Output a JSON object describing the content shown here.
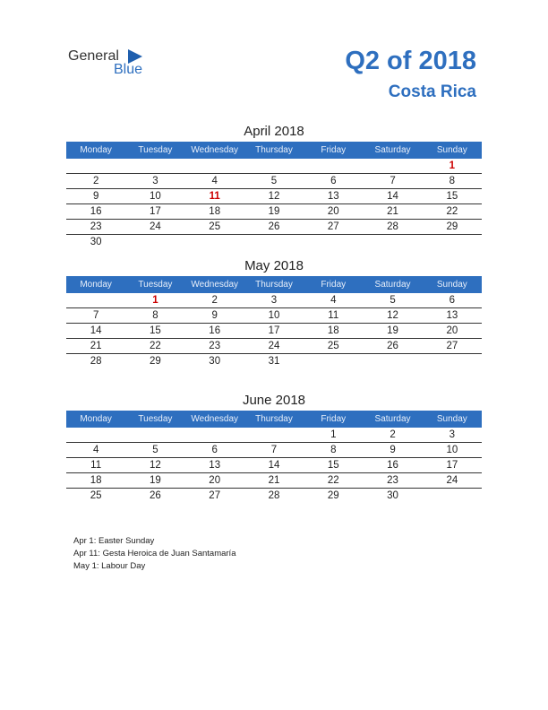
{
  "logo": {
    "general": "General",
    "blue": "Blue"
  },
  "header": {
    "title": "Q2 of 2018",
    "subtitle": "Costa Rica"
  },
  "weekdays": [
    "Monday",
    "Tuesday",
    "Wednesday",
    "Thursday",
    "Friday",
    "Saturday",
    "Sunday"
  ],
  "months": [
    {
      "title": "April 2018",
      "weeks": [
        [
          "",
          "",
          "",
          "",
          "",
          "",
          "1"
        ],
        [
          "2",
          "3",
          "4",
          "5",
          "6",
          "7",
          "8"
        ],
        [
          "9",
          "10",
          "11",
          "12",
          "13",
          "14",
          "15"
        ],
        [
          "16",
          "17",
          "18",
          "19",
          "20",
          "21",
          "22"
        ],
        [
          "23",
          "24",
          "25",
          "26",
          "27",
          "28",
          "29"
        ],
        [
          "30",
          "",
          "",
          "",
          "",
          "",
          ""
        ]
      ],
      "holidays": [
        "1",
        "11"
      ]
    },
    {
      "title": "May 2018",
      "weeks": [
        [
          "",
          "1",
          "2",
          "3",
          "4",
          "5",
          "6"
        ],
        [
          "7",
          "8",
          "9",
          "10",
          "11",
          "12",
          "13"
        ],
        [
          "14",
          "15",
          "16",
          "17",
          "18",
          "19",
          "20"
        ],
        [
          "21",
          "22",
          "23",
          "24",
          "25",
          "26",
          "27"
        ],
        [
          "28",
          "29",
          "30",
          "31",
          "",
          "",
          ""
        ]
      ],
      "holidays": [
        "1"
      ]
    },
    {
      "title": "June 2018",
      "weeks": [
        [
          "",
          "",
          "",
          "",
          "1",
          "2",
          "3"
        ],
        [
          "4",
          "5",
          "6",
          "7",
          "8",
          "9",
          "10"
        ],
        [
          "11",
          "12",
          "13",
          "14",
          "15",
          "16",
          "17"
        ],
        [
          "18",
          "19",
          "20",
          "21",
          "22",
          "23",
          "24"
        ],
        [
          "25",
          "26",
          "27",
          "28",
          "29",
          "30",
          ""
        ]
      ],
      "holidays": []
    }
  ],
  "notes": [
    "Apr 1: Easter Sunday",
    "Apr 11: Gesta Heroica de Juan Santamaría",
    "May 1: Labour Day"
  ],
  "colors": {
    "accent": "#2e6fbf",
    "holiday": "#cc0000"
  }
}
